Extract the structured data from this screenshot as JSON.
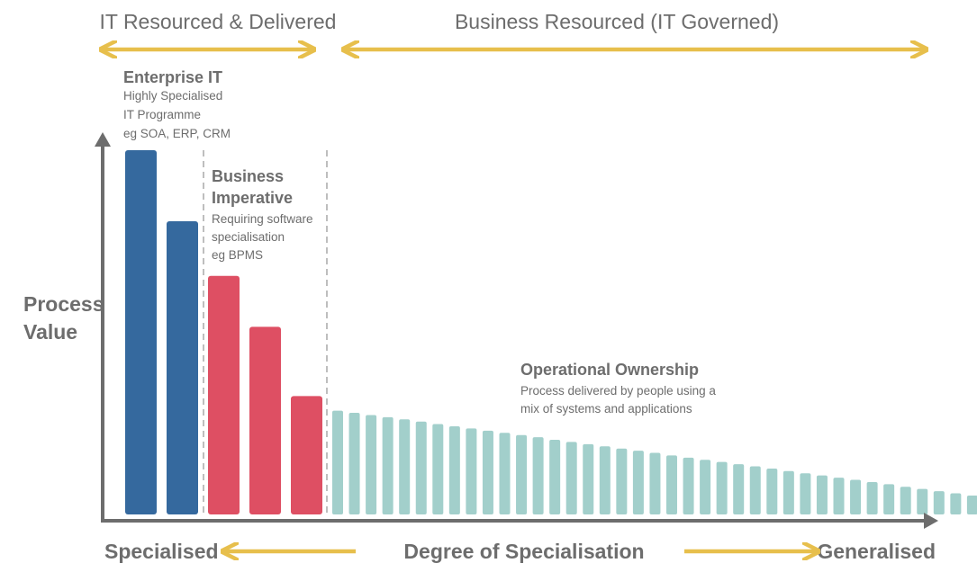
{
  "chart_data": {
    "type": "bar",
    "top_bands": {
      "left_label": "IT Resourced & Delivered",
      "right_label": "Business Resourced (IT Governed)"
    },
    "ylabel_lines": [
      "Process",
      "Value"
    ],
    "xlabel": "Degree of Specialisation",
    "x_left_label": "Specialised",
    "x_right_label": "Generalised",
    "ylim": [
      0,
      100
    ],
    "groups": [
      {
        "name": "enterprise-it",
        "title_lines": [
          "Enterprise IT"
        ],
        "subtitle_lines": [
          "Highly Specialised",
          "IT Programme",
          "eg SOA, ERP, CRM"
        ],
        "values": [
          100,
          80.5
        ]
      },
      {
        "name": "business-imperative",
        "title_lines": [
          "Business",
          "Imperative"
        ],
        "subtitle_lines": [
          "Requiring software",
          "specialisation",
          "eg BPMS"
        ],
        "values": [
          65.5,
          51.5,
          32.5
        ]
      },
      {
        "name": "operational-ownership",
        "title_lines": [
          "Operational Ownership"
        ],
        "subtitle_lines": [
          "Process delivered by people using a",
          "mix of systems and applications"
        ],
        "values": [
          28.5,
          27.9,
          27.3,
          26.7,
          26.1,
          25.5,
          24.8,
          24.2,
          23.6,
          23.0,
          22.4,
          21.8,
          21.2,
          20.5,
          19.9,
          19.3,
          18.7,
          18.1,
          17.5,
          16.9,
          16.2,
          15.6,
          15.0,
          14.4,
          13.8,
          13.2,
          12.6,
          11.9,
          11.3,
          10.7,
          10.1,
          9.5,
          8.9,
          8.3,
          7.6,
          7.0,
          6.4,
          5.8,
          5.2,
          4.6,
          4.0,
          3.3,
          2.7
        ]
      }
    ],
    "colors": {
      "enterprise": "#35699e",
      "imperative": "#de4f63",
      "operational": "#a2cfcb",
      "arrow": "#e7bf4c",
      "axis": "#6d6d6d",
      "divider": "#a9a9a9",
      "text": "#6d6d6d"
    }
  }
}
